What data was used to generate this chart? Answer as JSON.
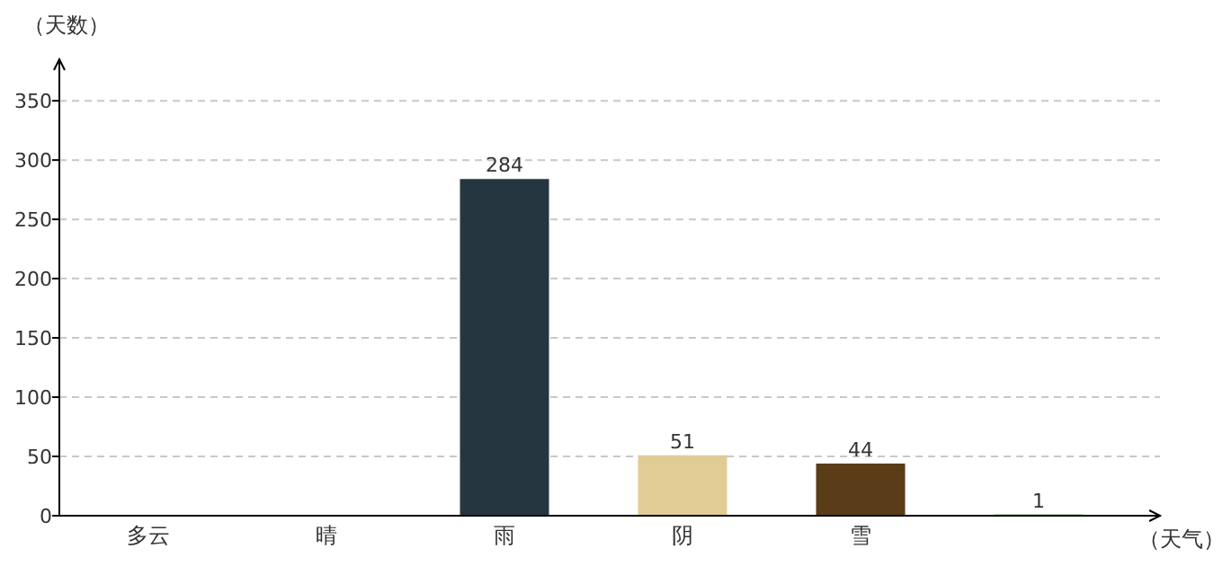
{
  "chart_data": {
    "type": "bar",
    "xlabel": "（天气）",
    "ylabel": "（天数）",
    "categories": [
      "多云",
      "晴",
      "雨",
      "阴",
      "雪",
      null
    ],
    "values": [
      null,
      null,
      284,
      51,
      44,
      1
    ],
    "colors": [
      null,
      null,
      "#263640",
      "#e0cc94",
      "#5a3d18",
      "#4a8a3a"
    ],
    "ylim": [
      0,
      385
    ],
    "yticks": [
      0,
      50,
      100,
      150,
      200,
      250,
      300,
      350
    ],
    "grid": "y",
    "data_labels": true
  }
}
